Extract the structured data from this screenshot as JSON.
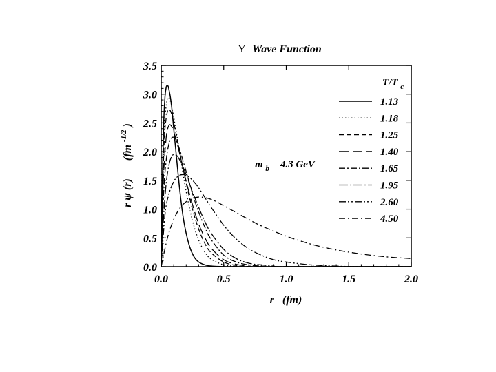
{
  "chart_data": {
    "type": "line",
    "title": "Υ Wave Function",
    "title_parts": {
      "symbol": "Υ",
      "text": "Wave Function"
    },
    "xlabel": "r  (fm)",
    "xlabel_parts": {
      "var": "r",
      "unit": "(fm)"
    },
    "ylabel": "r ψ (r)    (fm^-1/2)",
    "ylabel_parts": {
      "lhs": "r ψ (r)",
      "unit_base": "(fm",
      "unit_exp": "-1/2",
      "unit_close": ")"
    },
    "xlim": [
      0.0,
      2.0
    ],
    "ylim": [
      0.0,
      3.5
    ],
    "xticks": [
      "0.0",
      "0.5",
      "1.0",
      "1.5",
      "2.0"
    ],
    "yticks": [
      "0.0",
      "0.5",
      "1.0",
      "1.5",
      "2.0",
      "2.5",
      "3.0",
      "3.5"
    ],
    "grid": false,
    "legend_title": {
      "base": "T/T",
      "sub": "c"
    },
    "legend_placement": "top-right",
    "annotation": {
      "base": "m",
      "sub": "b",
      "rest": "= 4.3 GeV"
    },
    "series": [
      {
        "name": "1.13",
        "style": "solid",
        "x": [
          0,
          0.01,
          0.02,
          0.03,
          0.04,
          0.05,
          0.06,
          0.08,
          0.1,
          0.12,
          0.15,
          0.18,
          0.22,
          0.26,
          0.3,
          0.35,
          0.4,
          0.5,
          0.6,
          2.0
        ],
        "y": [
          0,
          1.6,
          2.5,
          2.95,
          3.12,
          3.15,
          3.1,
          2.85,
          2.4,
          1.95,
          1.3,
          0.8,
          0.4,
          0.18,
          0.08,
          0.03,
          0.01,
          0,
          0,
          0
        ]
      },
      {
        "name": "1.18",
        "style": "dotted",
        "x": [
          0,
          0.01,
          0.02,
          0.03,
          0.05,
          0.07,
          0.09,
          0.12,
          0.15,
          0.2,
          0.25,
          0.3,
          0.35,
          0.4,
          0.5,
          0.6,
          0.7,
          2.0
        ],
        "y": [
          0,
          1.3,
          2.1,
          2.6,
          2.92,
          2.9,
          2.72,
          2.35,
          1.95,
          1.3,
          0.8,
          0.46,
          0.25,
          0.13,
          0.03,
          0.01,
          0,
          0
        ]
      },
      {
        "name": "1.25",
        "style": "dashed",
        "x": [
          0,
          0.01,
          0.02,
          0.03,
          0.05,
          0.07,
          0.09,
          0.12,
          0.15,
          0.2,
          0.25,
          0.3,
          0.35,
          0.4,
          0.5,
          0.6,
          0.7,
          2.0
        ],
        "y": [
          0,
          1.2,
          1.95,
          2.4,
          2.7,
          2.72,
          2.6,
          2.3,
          1.97,
          1.45,
          1.0,
          0.65,
          0.4,
          0.24,
          0.08,
          0.02,
          0,
          0
        ]
      },
      {
        "name": "1.40",
        "style": "longdash",
        "x": [
          0,
          0.01,
          0.02,
          0.04,
          0.06,
          0.08,
          0.1,
          0.13,
          0.16,
          0.2,
          0.25,
          0.3,
          0.35,
          0.4,
          0.5,
          0.6,
          0.7,
          0.8,
          2.0
        ],
        "y": [
          0,
          1.0,
          1.65,
          2.25,
          2.45,
          2.45,
          2.35,
          2.12,
          1.85,
          1.48,
          1.08,
          0.74,
          0.5,
          0.32,
          0.12,
          0.04,
          0.01,
          0,
          0
        ]
      },
      {
        "name": "1.65",
        "style": "dashdot",
        "x": [
          0,
          0.02,
          0.04,
          0.06,
          0.08,
          0.1,
          0.12,
          0.15,
          0.18,
          0.22,
          0.26,
          0.3,
          0.35,
          0.4,
          0.5,
          0.6,
          0.7,
          0.8,
          0.9,
          2.0
        ],
        "y": [
          0,
          1.3,
          1.85,
          2.12,
          2.23,
          2.25,
          2.2,
          2.02,
          1.8,
          1.5,
          1.2,
          0.95,
          0.68,
          0.47,
          0.2,
          0.08,
          0.03,
          0.01,
          0,
          0
        ]
      },
      {
        "name": "1.95",
        "style": "longdashdot",
        "x": [
          0,
          0.02,
          0.04,
          0.06,
          0.08,
          0.1,
          0.13,
          0.16,
          0.2,
          0.25,
          0.3,
          0.35,
          0.4,
          0.5,
          0.6,
          0.7,
          0.8,
          0.9,
          1.0,
          2.0
        ],
        "y": [
          0,
          0.9,
          1.45,
          1.75,
          1.9,
          1.95,
          1.92,
          1.8,
          1.6,
          1.3,
          1.03,
          0.78,
          0.58,
          0.3,
          0.14,
          0.06,
          0.03,
          0.01,
          0,
          0
        ]
      },
      {
        "name": "2.60",
        "style": "dashdotdot",
        "x": [
          0,
          0.03,
          0.06,
          0.1,
          0.14,
          0.18,
          0.22,
          0.26,
          0.3,
          0.35,
          0.4,
          0.5,
          0.6,
          0.7,
          0.8,
          0.9,
          1.0,
          1.2,
          1.4,
          1.6,
          2.0
        ],
        "y": [
          0,
          0.9,
          1.25,
          1.48,
          1.58,
          1.6,
          1.56,
          1.48,
          1.37,
          1.2,
          1.03,
          0.72,
          0.48,
          0.31,
          0.2,
          0.12,
          0.08,
          0.03,
          0.01,
          0,
          0
        ]
      },
      {
        "name": "4.50",
        "style": "sparsedashdot",
        "x": [
          0,
          0.05,
          0.1,
          0.15,
          0.2,
          0.25,
          0.3,
          0.35,
          0.4,
          0.45,
          0.5,
          0.6,
          0.7,
          0.8,
          1.0,
          1.2,
          1.4,
          1.6,
          1.8,
          2.0
        ],
        "y": [
          0,
          0.5,
          0.82,
          1.02,
          1.13,
          1.19,
          1.21,
          1.2,
          1.17,
          1.12,
          1.06,
          0.94,
          0.82,
          0.71,
          0.53,
          0.39,
          0.29,
          0.22,
          0.17,
          0.14
        ]
      }
    ]
  }
}
